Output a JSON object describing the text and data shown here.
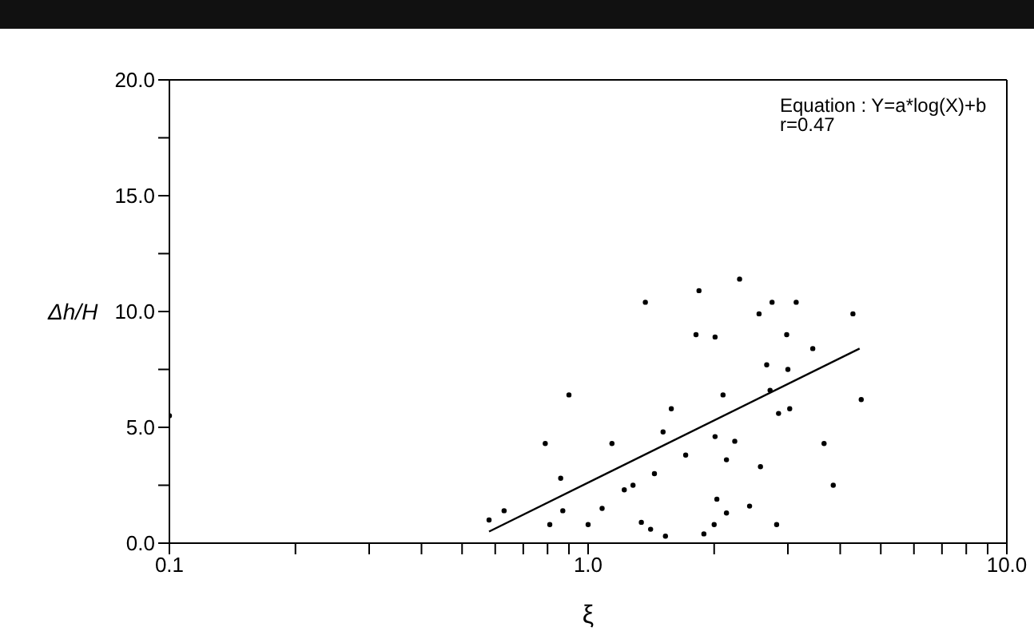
{
  "chart_data": {
    "type": "scatter",
    "xlabel": "ξ",
    "ylabel": "Δh/H",
    "log": "x",
    "marker": "circle",
    "xlim": [
      0.1,
      10
    ],
    "ylim": [
      0,
      20
    ],
    "xticks": [
      {
        "value": 0.1,
        "label": "0.1"
      },
      {
        "value": 0.2,
        "label": null
      },
      {
        "value": 0.3,
        "label": null
      },
      {
        "value": 0.4,
        "label": null
      },
      {
        "value": 0.5,
        "label": null
      },
      {
        "value": 0.6,
        "label": null
      },
      {
        "value": 0.7,
        "label": null
      },
      {
        "value": 0.8,
        "label": null
      },
      {
        "value": 0.9,
        "label": null
      },
      {
        "value": 1,
        "label": "1.0"
      },
      {
        "value": 2,
        "label": null
      },
      {
        "value": 3,
        "label": null
      },
      {
        "value": 4,
        "label": null
      },
      {
        "value": 5,
        "label": null
      },
      {
        "value": 6,
        "label": null
      },
      {
        "value": 7,
        "label": null
      },
      {
        "value": 8,
        "label": null
      },
      {
        "value": 9,
        "label": null
      },
      {
        "value": 10,
        "label": "10.0"
      }
    ],
    "yticks": [
      {
        "value": 0,
        "label": "0.0"
      },
      {
        "value": 2.5,
        "label": null
      },
      {
        "value": 5,
        "label": "5.0"
      },
      {
        "value": 7.5,
        "label": null
      },
      {
        "value": 10,
        "label": "10.0"
      },
      {
        "value": 12.5,
        "label": null
      },
      {
        "value": 15,
        "label": "15.0"
      },
      {
        "value": 17.5,
        "label": null
      },
      {
        "value": 20,
        "label": "20.0"
      }
    ],
    "annotations": [
      "Equation : Y=a*log(X)+b",
      "r=0.47"
    ],
    "series": [
      {
        "color": "#000000",
        "x": [
          0.1,
          0.58,
          0.63,
          0.79,
          0.9,
          0.86,
          0.81,
          0.87,
          1.0,
          1.08,
          1.14,
          1.22,
          1.28,
          1.34,
          1.41,
          1.53,
          1.37,
          1.44,
          1.51,
          1.58,
          1.71,
          1.81,
          1.84,
          2.01,
          2.3,
          2.1,
          2.01,
          2.24,
          2.14,
          2.03,
          2.14,
          2.0,
          1.89,
          2.75,
          3.14,
          2.56,
          4.29,
          2.98,
          3.44,
          2.67,
          3.0,
          2.72,
          4.49,
          2.85,
          3.03,
          3.66,
          2.58,
          3.85,
          2.43,
          2.82
        ],
        "values": [
          5.5,
          1.0,
          1.4,
          4.3,
          6.4,
          2.8,
          0.8,
          1.4,
          0.8,
          1.5,
          4.3,
          2.3,
          2.5,
          0.9,
          0.6,
          0.3,
          10.4,
          3.0,
          4.8,
          5.8,
          3.8,
          9.0,
          10.9,
          8.9,
          11.4,
          6.4,
          4.6,
          4.4,
          3.6,
          1.9,
          1.3,
          0.8,
          0.4,
          10.4,
          10.4,
          9.9,
          9.9,
          9.0,
          8.4,
          7.7,
          7.5,
          6.6,
          6.2,
          5.6,
          5.8,
          4.3,
          3.3,
          2.5,
          1.6,
          0.8
        ]
      },
      {
        "type": "line",
        "color": "#000000",
        "line_style": "solid",
        "marker": "none",
        "x": [
          0.58,
          4.45
        ],
        "values": [
          0.5,
          8.4
        ]
      }
    ]
  }
}
